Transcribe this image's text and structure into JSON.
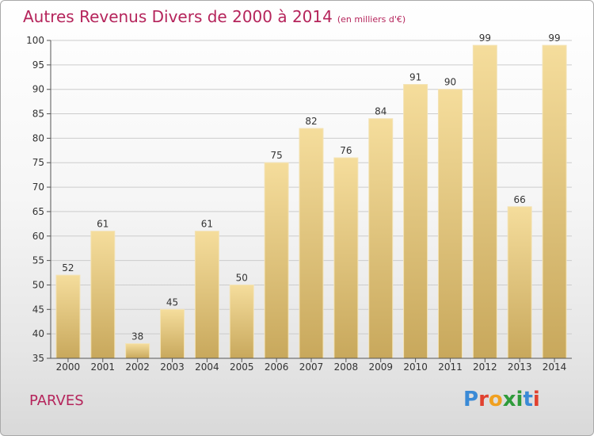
{
  "header": {
    "title": "Autres Revenus Divers de 2000 à 2014",
    "unit": "(en milliers d'€)"
  },
  "footer": {
    "commune": "PARVES",
    "logo_text": "Proxiti"
  },
  "colors": {
    "title": "#b5245b",
    "bar_top": "#f5dd9c",
    "bar_bottom": "#c8a85c",
    "bar_stroke": "#f3e3b6",
    "grid": "#cccccc",
    "axis": "#555555"
  },
  "chart_data": {
    "type": "bar",
    "title": "Autres Revenus Divers de 2000 à 2014",
    "xlabel": "",
    "ylabel": "",
    "ylim": [
      35,
      100
    ],
    "yticks": [
      35,
      40,
      45,
      50,
      55,
      60,
      65,
      70,
      75,
      80,
      85,
      90,
      95,
      100
    ],
    "grid": true,
    "categories": [
      "2000",
      "2001",
      "2002",
      "2003",
      "2004",
      "2005",
      "2006",
      "2007",
      "2008",
      "2009",
      "2010",
      "2011",
      "2012",
      "2013",
      "2014"
    ],
    "values": [
      52,
      61,
      38,
      45,
      61,
      50,
      75,
      82,
      76,
      84,
      91,
      90,
      99,
      66,
      99
    ]
  }
}
